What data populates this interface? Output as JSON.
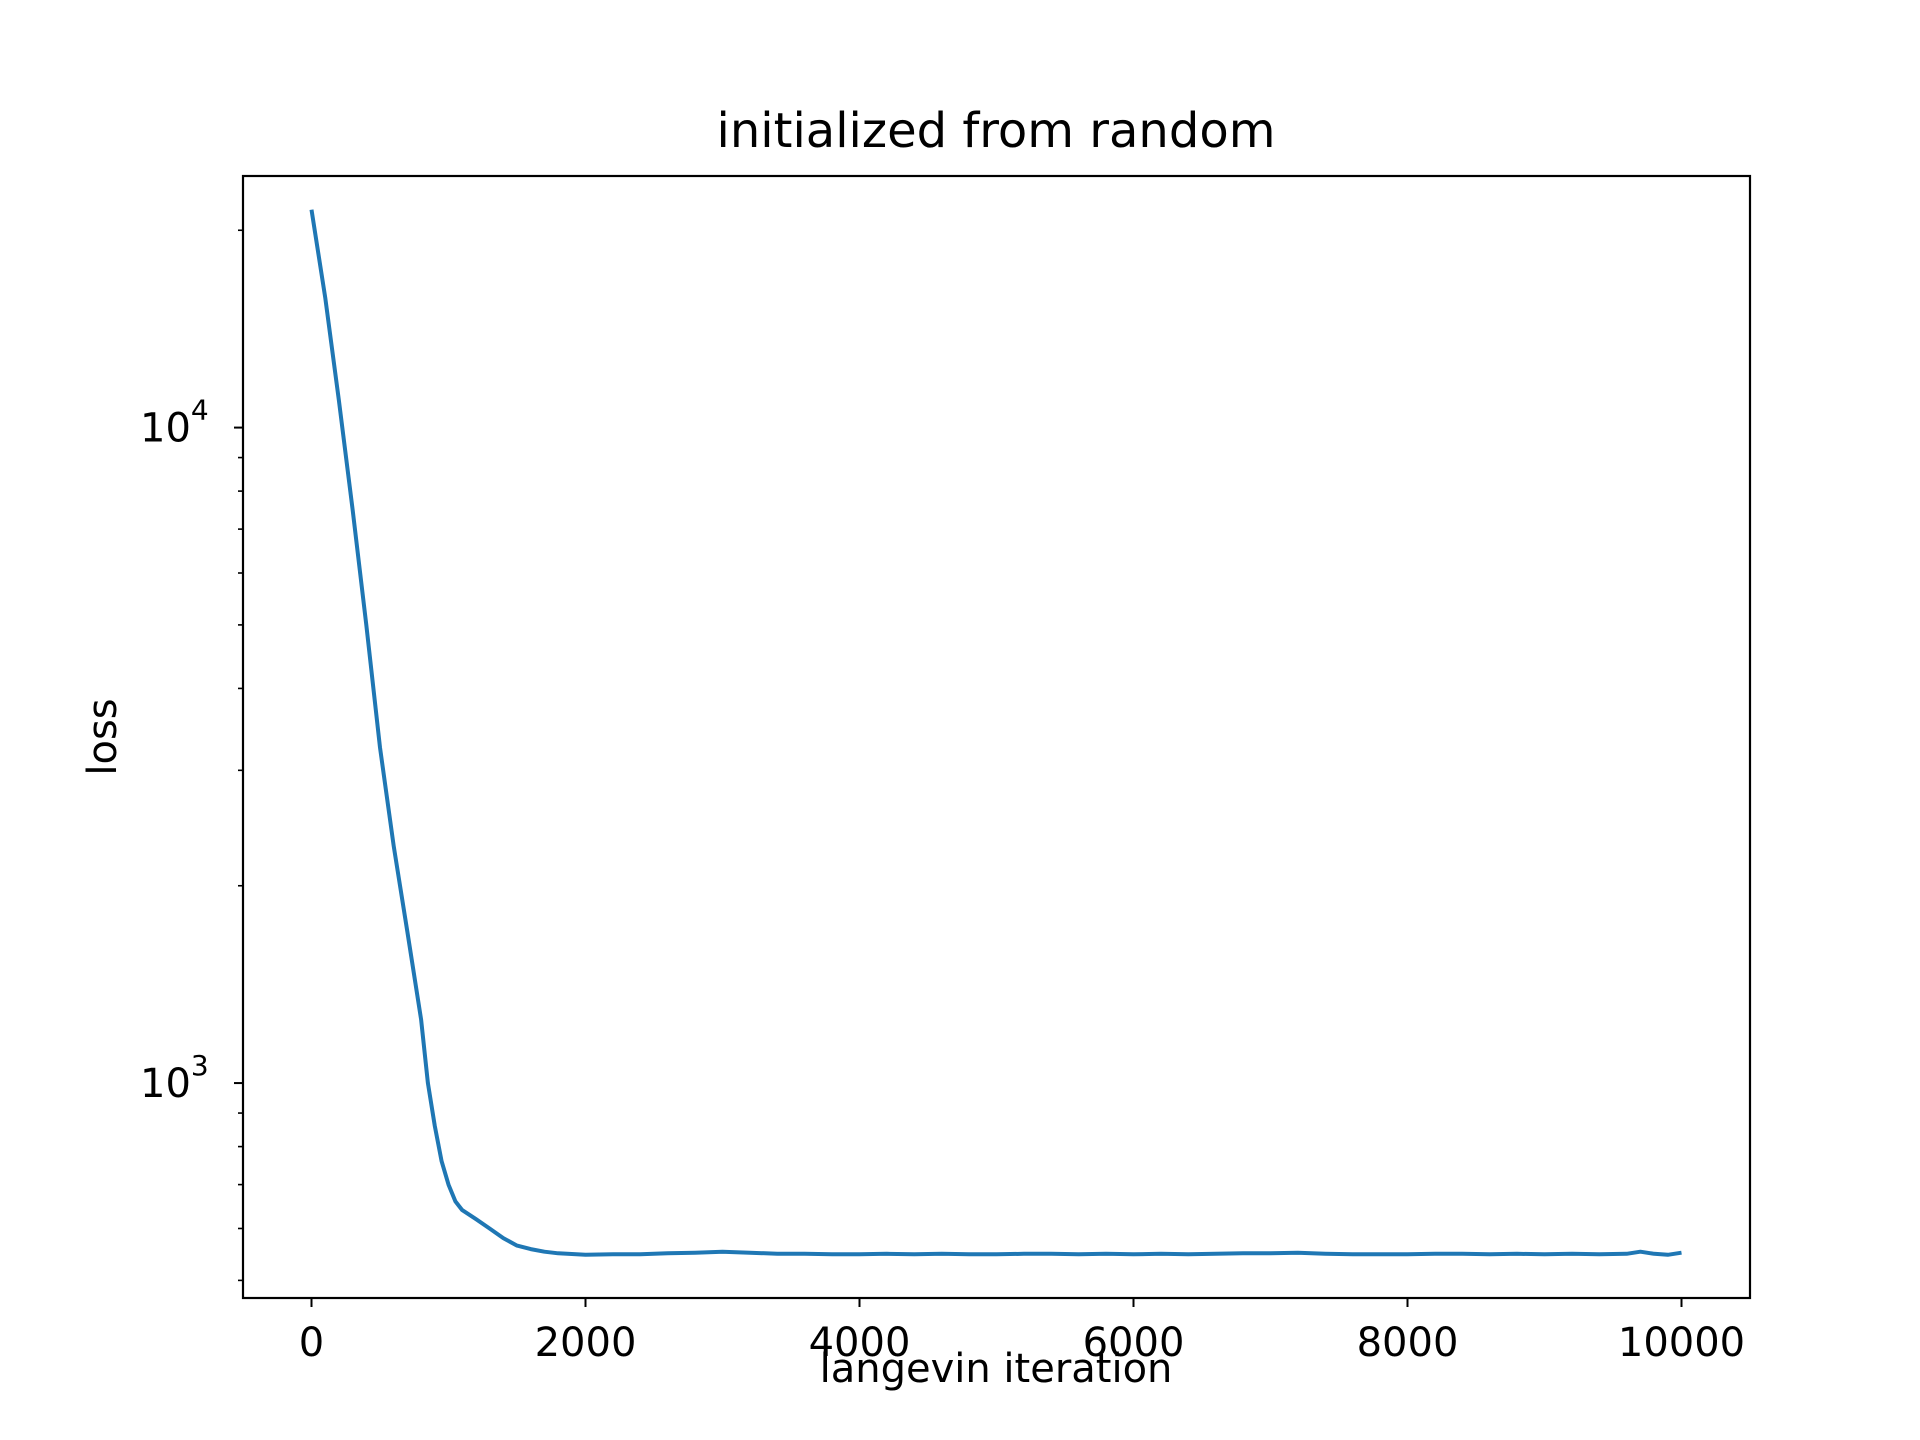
{
  "chart_data": {
    "type": "line",
    "title": "initialized from random",
    "xlabel": "langevin iteration",
    "ylabel": "loss",
    "xlim": [
      -500,
      10500
    ],
    "ylim": [
      470,
      24200
    ],
    "yscale": "log",
    "grid": false,
    "x_ticks": [
      {
        "value": 0,
        "label": "0"
      },
      {
        "value": 2000,
        "label": "2000"
      },
      {
        "value": 4000,
        "label": "4000"
      },
      {
        "value": 6000,
        "label": "6000"
      },
      {
        "value": 8000,
        "label": "8000"
      },
      {
        "value": 10000,
        "label": "10000"
      }
    ],
    "y_major_ticks": [
      {
        "value": 1000,
        "base": "10",
        "exponent": "3"
      },
      {
        "value": 10000,
        "base": "10",
        "exponent": "4"
      }
    ],
    "y_minor_ticks": [
      500,
      600,
      700,
      800,
      900,
      2000,
      3000,
      4000,
      5000,
      6000,
      7000,
      8000,
      9000,
      20000
    ],
    "series": [
      {
        "color": "#1f77b4",
        "x": [
          0,
          100,
          200,
          300,
          400,
          500,
          600,
          700,
          800,
          850,
          900,
          950,
          1000,
          1050,
          1100,
          1200,
          1300,
          1400,
          1500,
          1600,
          1700,
          1800,
          2000,
          2200,
          2400,
          2600,
          2800,
          3000,
          3200,
          3400,
          3600,
          3800,
          4000,
          4200,
          4400,
          4600,
          4800,
          5000,
          5200,
          5400,
          5600,
          5800,
          6000,
          6200,
          6400,
          6600,
          6800,
          7000,
          7200,
          7400,
          7600,
          7800,
          8000,
          8200,
          8400,
          8600,
          8800,
          9000,
          9200,
          9400,
          9600,
          9700,
          9800,
          9900,
          10000
        ],
        "values": [
          21500,
          15800,
          11000,
          7500,
          5000,
          3250,
          2300,
          1700,
          1250,
          1000,
          860,
          760,
          700,
          660,
          640,
          620,
          600,
          580,
          565,
          558,
          553,
          550,
          547,
          548,
          548,
          550,
          551,
          553,
          551,
          549,
          549,
          548,
          548,
          549,
          548,
          549,
          548,
          548,
          549,
          549,
          548,
          549,
          548,
          549,
          548,
          549,
          550,
          550,
          551,
          549,
          548,
          548,
          548,
          549,
          549,
          548,
          549,
          548,
          549,
          548,
          549,
          553,
          549,
          547,
          551
        ]
      }
    ]
  }
}
